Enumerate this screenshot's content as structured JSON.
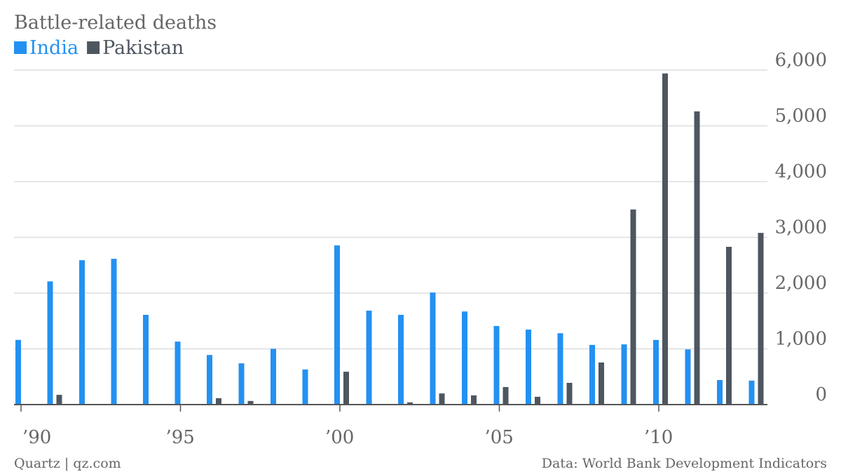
{
  "chart_data": {
    "type": "bar",
    "title": "Battle-related deaths",
    "source_left": "Quartz | qz.com",
    "source_right": "Data: World Bank Development Indicators",
    "categories": [
      "’90",
      null,
      null,
      null,
      null,
      "’95",
      null,
      null,
      null,
      null,
      "’00",
      null,
      null,
      null,
      null,
      "’05",
      null,
      null,
      null,
      null,
      "’10",
      null,
      null,
      null
    ],
    "series": [
      {
        "name": "India",
        "color": "#2391f2",
        "values": [
          1160,
          2210,
          2590,
          2615,
          1610,
          1130,
          890,
          740,
          1000,
          630,
          2855,
          1685,
          1610,
          2010,
          1670,
          1410,
          1345,
          1280,
          1070,
          1080,
          1160,
          990,
          440,
          430
        ]
      },
      {
        "name": "Pakistan",
        "color": "#4e5660",
        "values": [
          0,
          175,
          0,
          0,
          0,
          0,
          115,
          65,
          0,
          0,
          590,
          0,
          40,
          200,
          165,
          315,
          140,
          390,
          755,
          3500,
          5940,
          5260,
          2830,
          3080
        ]
      }
    ],
    "ylim": [
      0,
      6000
    ],
    "yticks": [
      0,
      {
        "value": 1000,
        "label": "1,000"
      },
      {
        "value": 2000,
        "label": "2,000"
      },
      {
        "value": 3000,
        "label": "3,000"
      },
      {
        "value": 4000,
        "label": "4,000"
      },
      {
        "value": 5000,
        "label": "5,000"
      },
      {
        "value": 6000,
        "label": "6,000"
      }
    ],
    "grid": true
  }
}
